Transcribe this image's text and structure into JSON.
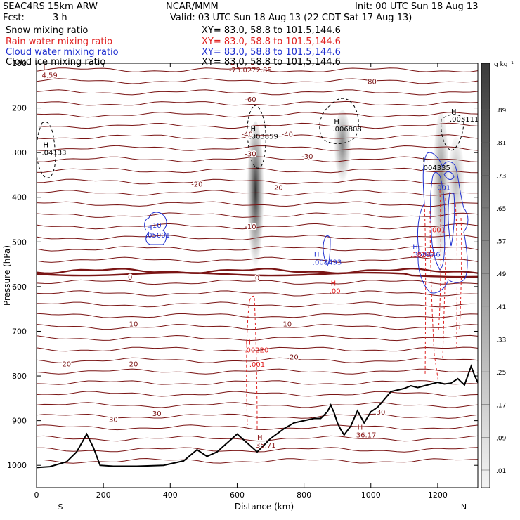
{
  "header": {
    "model": "SEAC4RS 15km ARW",
    "org": "NCAR/MMM",
    "init": "Init: 00 UTC Sun 18 Aug 13",
    "fcst_label": "Fcst:",
    "fcst_value": "3 h",
    "valid": "Valid: 03 UTC Sun 18 Aug 13 (22 CDT Sat 17 Aug 13)",
    "fields": [
      {
        "name": "Snow mixing ratio",
        "xy": "XY=  83.0, 58.8 to 101.5,144.6",
        "color": "#000000"
      },
      {
        "name": "Rain water mixing ratio",
        "xy": "XY=  83.0, 58.8 to 101.5,144.6",
        "color": "#e02020"
      },
      {
        "name": "Cloud water mixing ratio",
        "xy": "XY=  83.0, 58.8 to 101.5,144.6",
        "color": "#1f2fd0"
      },
      {
        "name": "Cloud ice mixing ratio",
        "xy": "XY=  83.0, 58.8 to 101.5,144.6",
        "color": "#000000"
      }
    ]
  },
  "colorbar": {
    "unit": "g kg⁻¹",
    "labels": [
      ".89",
      ".81",
      ".73",
      ".65",
      ".57",
      ".49",
      ".41",
      ".33",
      ".25",
      ".17",
      ".09",
      ".01"
    ]
  },
  "chart_data": {
    "type": "contour",
    "xlabel": "Distance (km)",
    "ylabel": "Pressure (hPa)",
    "xlim": [
      0,
      1320
    ],
    "ylim": [
      1050,
      100
    ],
    "xticks": [
      "0",
      "200",
      "400",
      "600",
      "800",
      "1000",
      "1200"
    ],
    "yticks": [
      "100",
      "200",
      "300",
      "400",
      "500",
      "600",
      "700",
      "800",
      "900",
      "1000"
    ],
    "x_end_labels": {
      "left": "S",
      "right": "N"
    },
    "isotherm_labels": [
      {
        "x": 1000,
        "p": 140,
        "text": "-80"
      },
      {
        "x": 640,
        "p": 180,
        "text": "-60"
      },
      {
        "x": 630,
        "p": 258,
        "text": "-40"
      },
      {
        "x": 750,
        "p": 258,
        "text": "-40"
      },
      {
        "x": 640,
        "p": 302,
        "text": "-30"
      },
      {
        "x": 810,
        "p": 308,
        "text": "-30"
      },
      {
        "x": 480,
        "p": 370,
        "text": "-20"
      },
      {
        "x": 720,
        "p": 378,
        "text": "-20"
      },
      {
        "x": 640,
        "p": 465,
        "text": "-10"
      },
      {
        "x": 280,
        "p": 578,
        "text": "0"
      },
      {
        "x": 660,
        "p": 580,
        "text": "0"
      },
      {
        "x": 290,
        "p": 683,
        "text": "10"
      },
      {
        "x": 750,
        "p": 683,
        "text": "10"
      },
      {
        "x": 90,
        "p": 772,
        "text": "20"
      },
      {
        "x": 290,
        "p": 772,
        "text": "20"
      },
      {
        "x": 770,
        "p": 757,
        "text": "20"
      },
      {
        "x": 360,
        "p": 883,
        "text": "30"
      },
      {
        "x": 230,
        "p": 897,
        "text": "30"
      },
      {
        "x": 1030,
        "p": 880,
        "text": "30"
      }
    ],
    "extrema": [
      {
        "x": 20,
        "p": 115,
        "letter": "L",
        "value": "4.59",
        "color": "#8b1a1a"
      },
      {
        "x": 580,
        "p": 103,
        "letter": "L",
        "value": "-73.02",
        "color": "#8b1a1a"
      },
      {
        "x": 640,
        "p": 103,
        "letter": "L",
        "value": "-72.85",
        "color": "#8b1a1a"
      },
      {
        "x": 640,
        "p": 252,
        "letter": "H",
        "value": ".003859",
        "color": "#000000"
      },
      {
        "x": 20,
        "p": 288,
        "letter": "H",
        "value": ".04133",
        "color": "#000000"
      },
      {
        "x": 890,
        "p": 235,
        "letter": "H",
        "value": ".006808",
        "color": "#000000"
      },
      {
        "x": 1240,
        "p": 213,
        "letter": "H",
        "value": ".003111",
        "color": "#000000"
      },
      {
        "x": 1155,
        "p": 322,
        "letter": "H",
        "value": ".004335",
        "color": "#000000"
      },
      {
        "x": 330,
        "p": 473,
        "letter": "H",
        "value": ".05001",
        "color": "#1f2fd0"
      },
      {
        "x": 830,
        "p": 533,
        "letter": "H",
        "value": ".008493",
        "color": "#1f2fd0"
      },
      {
        "x": 1125,
        "p": 516,
        "letter": "H",
        "value": ".358446",
        "color": "#1f2fd0"
      },
      {
        "x": 880,
        "p": 598,
        "letter": "H",
        "value": ".00",
        "color": "#e02020"
      },
      {
        "x": 625,
        "p": 730,
        "letter": "H",
        "value": ".00220",
        "color": "#e02020"
      },
      {
        "x": 660,
        "p": 943,
        "letter": "H",
        "value": "35.71",
        "color": "#8b1a1a"
      },
      {
        "x": 960,
        "p": 920,
        "letter": "H",
        "value": "36.17",
        "color": "#8b1a1a"
      }
    ],
    "contour_value_labels": [
      {
        "x": 1215,
        "p": 378,
        "text": ".001",
        "color": "#1f2fd0"
      },
      {
        "x": 1200,
        "p": 472,
        "text": ".001",
        "color": "#e02020"
      },
      {
        "x": 1155,
        "p": 528,
        "text": ".18287",
        "color": "#e02020"
      },
      {
        "x": 660,
        "p": 773,
        "text": ".001",
        "color": "#e02020"
      },
      {
        "x": 360,
        "p": 462,
        "text": "10",
        "color": "#1f2fd0"
      }
    ],
    "terrain": {
      "x": [
        0,
        40,
        90,
        120,
        150,
        170,
        190,
        230,
        300,
        380,
        440,
        480,
        510,
        540,
        570,
        600,
        630,
        660,
        700,
        740,
        770,
        800,
        830,
        850,
        870,
        880,
        890,
        900,
        910,
        920,
        940,
        960,
        980,
        1000,
        1020,
        1060,
        1100,
        1120,
        1140,
        1160,
        1180,
        1200,
        1220,
        1240,
        1260,
        1280,
        1300,
        1310,
        1320
      ],
      "p": [
        1005,
        1003,
        992,
        970,
        930,
        960,
        1000,
        1002,
        1002,
        1000,
        990,
        965,
        980,
        970,
        950,
        930,
        950,
        970,
        940,
        918,
        905,
        900,
        895,
        895,
        880,
        865,
        882,
        905,
        920,
        932,
        912,
        878,
        905,
        880,
        870,
        835,
        828,
        822,
        826,
        822,
        818,
        814,
        818,
        816,
        806,
        820,
        778,
        798,
        815
      ]
    },
    "snow_shading": [
      {
        "x": 655,
        "p_top": 230,
        "p_bottom": 575,
        "peak": 0.95
      },
      {
        "x": 915,
        "p_top": 205,
        "p_bottom": 375,
        "peak": 0.6
      },
      {
        "x": 1210,
        "p_top": 210,
        "p_bottom": 565,
        "peak": 0.55
      },
      {
        "x": 1255,
        "p_top": 265,
        "p_bottom": 470,
        "peak": 0.35
      }
    ]
  }
}
